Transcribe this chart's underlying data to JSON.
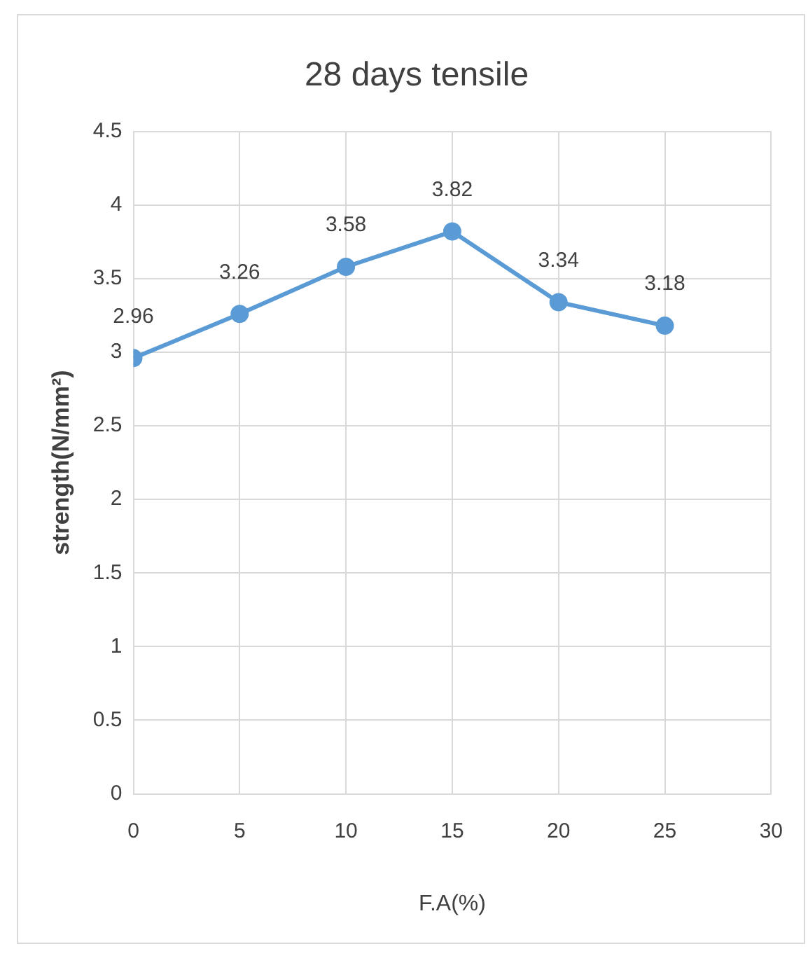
{
  "chart_data": {
    "type": "line",
    "title": "28 days tensile",
    "xlabel": "F.A(%)",
    "ylabel": "strength(N/mm²)",
    "x": [
      0,
      5,
      10,
      15,
      20,
      25
    ],
    "series": [
      {
        "color": "#5b9bd5",
        "values": [
          2.96,
          3.26,
          3.58,
          3.82,
          3.34,
          3.18
        ]
      }
    ],
    "xlim": [
      0,
      30
    ],
    "xticks": [
      0,
      5,
      10,
      15,
      20,
      25,
      30
    ],
    "ylim": [
      0,
      4.5
    ],
    "yticks": [
      0,
      0.5,
      1,
      1.5,
      2,
      2.5,
      3,
      3.5,
      4,
      4.5
    ],
    "grid": true,
    "marker": "circle",
    "line_style": "solid",
    "data_labels": true
  }
}
